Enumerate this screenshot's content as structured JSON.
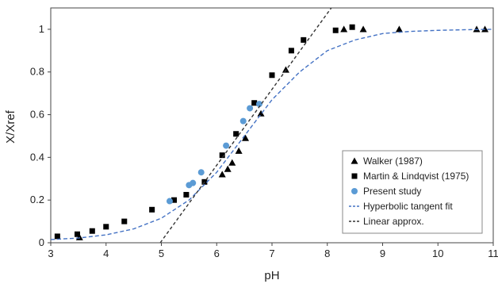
{
  "chart_data": {
    "type": "scatter",
    "title": "",
    "xlabel": "pH",
    "ylabel": "X/Xref",
    "xlim": [
      3,
      11
    ],
    "ylim": [
      0,
      1.1
    ],
    "xticks": [
      "3",
      "4",
      "5",
      "6",
      "7",
      "8",
      "9",
      "10",
      "11"
    ],
    "yticks": [
      "0",
      "0.2",
      "0.4",
      "0.6",
      "0.8",
      "1"
    ],
    "xtick_values": [
      3,
      4,
      5,
      6,
      7,
      8,
      9,
      10,
      11
    ],
    "ytick_values": [
      0,
      0.2,
      0.4,
      0.6,
      0.8,
      1
    ],
    "legend_position": "bottom-right",
    "series": [
      {
        "name": "Walker (1987)",
        "marker": "triangle",
        "color": "#000000",
        "points": [
          [
            3.52,
            0.025
          ],
          [
            6.1,
            0.32
          ],
          [
            6.2,
            0.345
          ],
          [
            6.28,
            0.375
          ],
          [
            6.4,
            0.43
          ],
          [
            6.52,
            0.49
          ],
          [
            6.8,
            0.605
          ],
          [
            7.25,
            0.81
          ],
          [
            8.3,
            1.0
          ],
          [
            8.65,
            1.0
          ],
          [
            9.3,
            1.0
          ],
          [
            10.7,
            1.0
          ],
          [
            10.85,
            1.0
          ]
        ]
      },
      {
        "name": "Martin & Lindqvist (1975)",
        "marker": "square",
        "color": "#000000",
        "points": [
          [
            3.12,
            0.03
          ],
          [
            3.48,
            0.04
          ],
          [
            3.75,
            0.055
          ],
          [
            4.0,
            0.075
          ],
          [
            4.33,
            0.1
          ],
          [
            4.83,
            0.155
          ],
          [
            5.23,
            0.2
          ],
          [
            5.45,
            0.225
          ],
          [
            5.78,
            0.285
          ],
          [
            6.1,
            0.41
          ],
          [
            6.35,
            0.51
          ],
          [
            6.68,
            0.655
          ],
          [
            7.0,
            0.785
          ],
          [
            7.35,
            0.9
          ],
          [
            7.57,
            0.95
          ],
          [
            8.15,
            0.995
          ],
          [
            8.45,
            1.01
          ]
        ]
      },
      {
        "name": "Present study",
        "marker": "circle",
        "color": "#5b9bd5",
        "points": [
          [
            5.15,
            0.195
          ],
          [
            5.5,
            0.27
          ],
          [
            5.57,
            0.28
          ],
          [
            5.72,
            0.33
          ],
          [
            6.17,
            0.455
          ],
          [
            6.48,
            0.57
          ],
          [
            6.6,
            0.63
          ],
          [
            6.77,
            0.65
          ]
        ]
      },
      {
        "name": "Hyperbolic tangent fit",
        "line_style": "dashed",
        "color": "#4472c4",
        "points": [
          [
            3.0,
            0.015
          ],
          [
            3.5,
            0.022
          ],
          [
            4.0,
            0.037
          ],
          [
            4.5,
            0.065
          ],
          [
            5.0,
            0.115
          ],
          [
            5.5,
            0.2
          ],
          [
            6.0,
            0.33
          ],
          [
            6.5,
            0.5
          ],
          [
            7.0,
            0.67
          ],
          [
            7.5,
            0.8
          ],
          [
            8.0,
            0.9
          ],
          [
            8.5,
            0.95
          ],
          [
            9.0,
            0.98
          ],
          [
            9.5,
            0.99
          ],
          [
            10.0,
            0.995
          ],
          [
            10.5,
            0.998
          ],
          [
            11.0,
            1.0
          ]
        ]
      },
      {
        "name": "Linear approx.",
        "line_style": "dashed",
        "color": "#333333",
        "points": [
          [
            4.98,
            0.0
          ],
          [
            8.1,
            1.11
          ]
        ]
      }
    ]
  }
}
